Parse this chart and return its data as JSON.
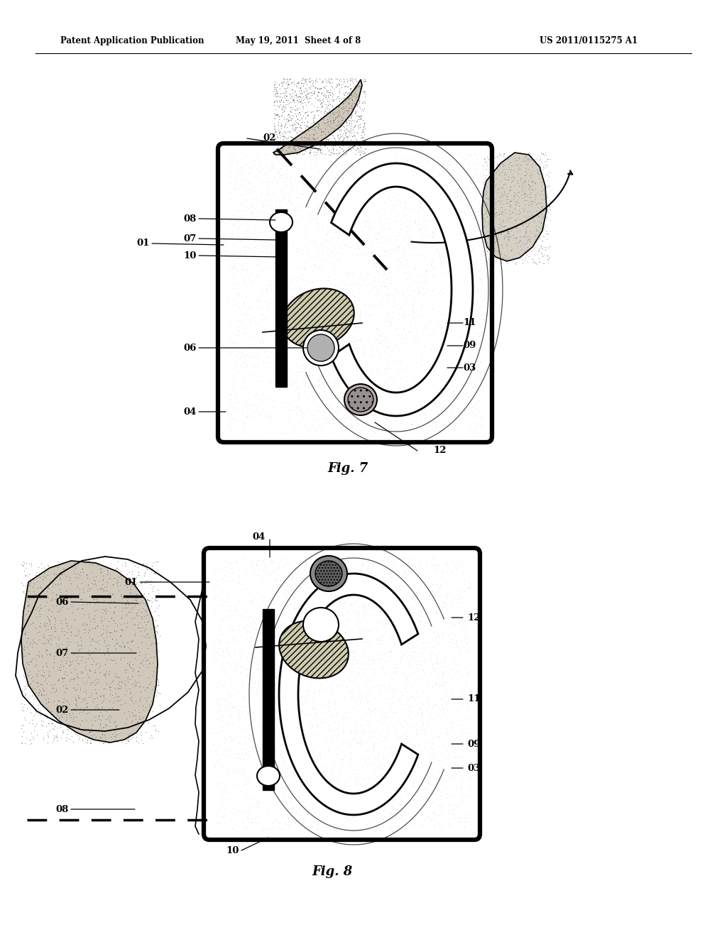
{
  "header_left": "Patent Application Publication",
  "header_mid": "May 19, 2011  Sheet 4 of 8",
  "header_right": "US 2011/0115275 A1",
  "fig7_caption": "Fig. 7",
  "fig8_caption": "Fig. 8",
  "bg_color": "#ffffff"
}
